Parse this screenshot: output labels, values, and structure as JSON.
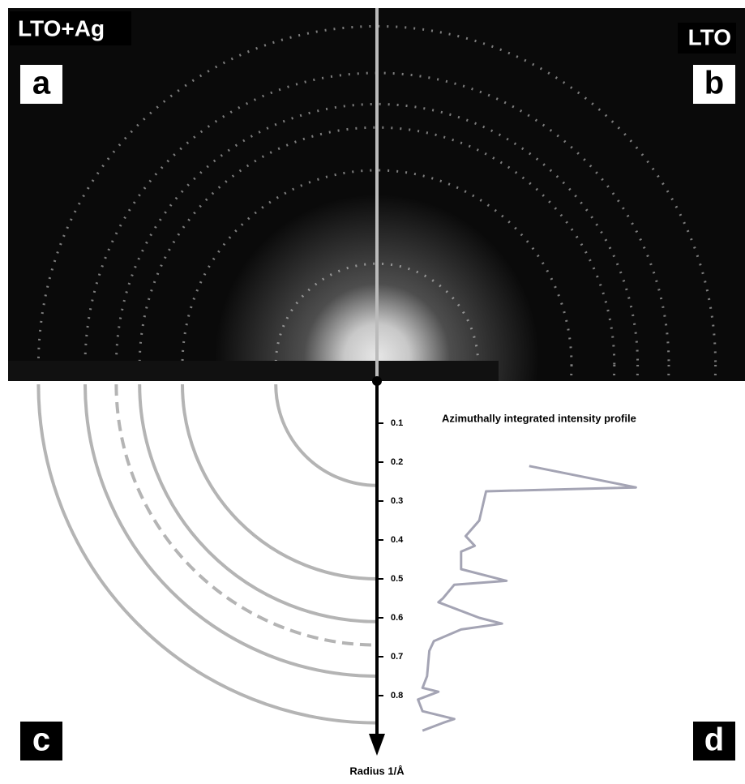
{
  "labels": {
    "sample_left": "LTO+Ag",
    "sample_right": "LTO",
    "panels": [
      "a",
      "b",
      "c",
      "d"
    ]
  },
  "chart_data": {
    "type": "profile",
    "title": "Azimuthally integrated intensity profile",
    "y_label": "Radius 1/Å",
    "ylim": [
      0,
      0.95
    ],
    "yticks": [
      0.1,
      0.2,
      0.3,
      0.4,
      0.5,
      0.6,
      0.7,
      0.8
    ],
    "rings": {
      "radii": [
        0.26,
        0.5,
        0.61,
        0.67,
        0.75,
        0.87
      ],
      "dashed": [
        false,
        false,
        false,
        true,
        false,
        false
      ],
      "color": "#b4b4b4"
    },
    "profile": {
      "color": "#a4a4b4",
      "xlim": [
        0,
        1
      ],
      "radius": [
        0.21,
        0.265,
        0.275,
        0.35,
        0.39,
        0.415,
        0.43,
        0.475,
        0.505,
        0.515,
        0.55,
        0.56,
        0.6,
        0.615,
        0.63,
        0.66,
        0.685,
        0.75,
        0.78,
        0.79,
        0.81,
        0.84,
        0.86,
        0.87,
        0.89
      ],
      "intensity": [
        0.51,
        0.98,
        0.32,
        0.29,
        0.23,
        0.27,
        0.21,
        0.21,
        0.41,
        0.18,
        0.13,
        0.11,
        0.29,
        0.39,
        0.21,
        0.09,
        0.07,
        0.06,
        0.04,
        0.11,
        0.02,
        0.04,
        0.18,
        0.13,
        0.04
      ]
    }
  }
}
